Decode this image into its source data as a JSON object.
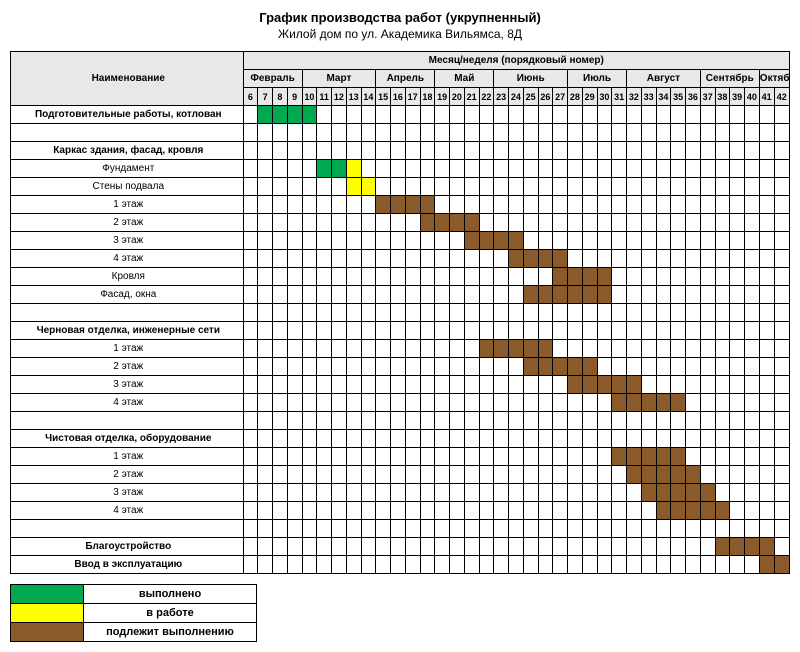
{
  "title": "График производства работ (укрупненный)",
  "subtitle": "Жилой дом по ул. Академика Вильямса, 8Д",
  "header_name": "Наименование",
  "header_period": "Месяц/неделя (порядковый номер)",
  "colors": {
    "done": "#00a84f",
    "progress": "#ffff00",
    "pending": "#8b5a2b",
    "header_bg": "#e8e8e8",
    "border": "#000000",
    "bg": "#ffffff"
  },
  "week_start": 6,
  "week_end": 42,
  "months": [
    {
      "label": "Февраль",
      "span": 4
    },
    {
      "label": "Март",
      "span": 5
    },
    {
      "label": "Апрель",
      "span": 4
    },
    {
      "label": "Май",
      "span": 4
    },
    {
      "label": "Июнь",
      "span": 5
    },
    {
      "label": "Июль",
      "span": 4
    },
    {
      "label": "Август",
      "span": 5
    },
    {
      "label": "Сентябрь",
      "span": 4
    },
    {
      "label": "Октябрь",
      "span": 2
    }
  ],
  "rows": [
    {
      "label": "Подготовительные работы, котлован",
      "bold": true,
      "bars": [
        {
          "from": 7,
          "to": 10,
          "c": "done"
        }
      ]
    },
    {
      "blank": true
    },
    {
      "label": "Каркас здания, фасад, кровля",
      "bold": true,
      "bars": []
    },
    {
      "label": "Фундамент",
      "bars": [
        {
          "from": 11,
          "to": 12,
          "c": "done"
        },
        {
          "from": 13,
          "to": 13,
          "c": "progress"
        }
      ]
    },
    {
      "label": "Стены подвала",
      "bars": [
        {
          "from": 13,
          "to": 14,
          "c": "progress"
        }
      ]
    },
    {
      "label": "1 этаж",
      "bars": [
        {
          "from": 15,
          "to": 18,
          "c": "pending"
        }
      ]
    },
    {
      "label": "2 этаж",
      "bars": [
        {
          "from": 18,
          "to": 21,
          "c": "pending"
        }
      ]
    },
    {
      "label": "3 этаж",
      "bars": [
        {
          "from": 21,
          "to": 24,
          "c": "pending"
        }
      ]
    },
    {
      "label": "4 этаж",
      "bars": [
        {
          "from": 24,
          "to": 27,
          "c": "pending"
        }
      ]
    },
    {
      "label": "Кровля",
      "bars": [
        {
          "from": 27,
          "to": 30,
          "c": "pending"
        }
      ]
    },
    {
      "label": "Фасад, окна",
      "bars": [
        {
          "from": 25,
          "to": 30,
          "c": "pending"
        }
      ]
    },
    {
      "blank": true
    },
    {
      "label": "Черновая отделка, инженерные сети",
      "bold": true,
      "bars": []
    },
    {
      "label": "1 этаж",
      "bars": [
        {
          "from": 22,
          "to": 26,
          "c": "pending"
        }
      ]
    },
    {
      "label": "2 этаж",
      "bars": [
        {
          "from": 25,
          "to": 29,
          "c": "pending"
        }
      ]
    },
    {
      "label": "3 этаж",
      "bars": [
        {
          "from": 28,
          "to": 32,
          "c": "pending"
        }
      ]
    },
    {
      "label": "4 этаж",
      "bars": [
        {
          "from": 31,
          "to": 35,
          "c": "pending"
        }
      ]
    },
    {
      "blank": true
    },
    {
      "label": "Чистовая отделка, оборудование",
      "bold": true,
      "bars": []
    },
    {
      "label": "1 этаж",
      "bars": [
        {
          "from": 31,
          "to": 35,
          "c": "pending"
        }
      ]
    },
    {
      "label": "2 этаж",
      "bars": [
        {
          "from": 32,
          "to": 36,
          "c": "pending"
        }
      ]
    },
    {
      "label": "3 этаж",
      "bars": [
        {
          "from": 33,
          "to": 37,
          "c": "pending"
        }
      ]
    },
    {
      "label": "4 этаж",
      "bars": [
        {
          "from": 34,
          "to": 38,
          "c": "pending"
        }
      ]
    },
    {
      "blank": true
    },
    {
      "label": "Благоустройство",
      "bold": true,
      "bars": [
        {
          "from": 38,
          "to": 41,
          "c": "pending"
        }
      ]
    },
    {
      "label": "Ввод в эксплуатацию",
      "bold": true,
      "bars": [
        {
          "from": 41,
          "to": 42,
          "c": "pending"
        }
      ]
    }
  ],
  "legend": [
    {
      "c": "done",
      "label": "выполнено"
    },
    {
      "c": "progress",
      "label": "в работе"
    },
    {
      "c": "pending",
      "label": "подлежит выполнению"
    }
  ]
}
